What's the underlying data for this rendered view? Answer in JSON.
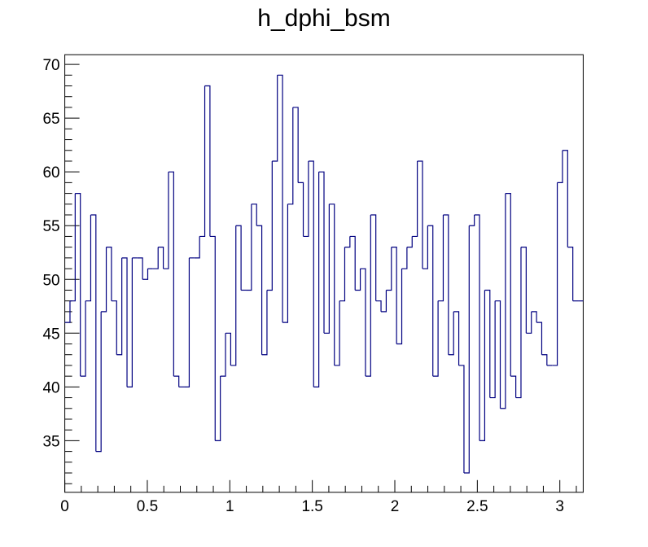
{
  "chart_data": {
    "type": "histogram",
    "title": "h_dphi_bsm",
    "xlabel": "",
    "ylabel": "",
    "xlim": [
      0,
      3.1416
    ],
    "ylim": [
      30.2,
      70.9
    ],
    "n_bins": 100,
    "x_tick_labels": [
      "0",
      "0.5",
      "1",
      "1.5",
      "2",
      "2.5",
      "3"
    ],
    "y_tick_labels": [
      "35",
      "40",
      "45",
      "50",
      "55",
      "60",
      "65",
      "70"
    ],
    "line_color": "#000080",
    "grid": false,
    "legend": "none",
    "series": [
      {
        "values": [
          46,
          48,
          58,
          41,
          48,
          56,
          34,
          47,
          53,
          48,
          43,
          52,
          40,
          52,
          52,
          50,
          51,
          51,
          53,
          51,
          60,
          41,
          40,
          40,
          52,
          52,
          54,
          68,
          54,
          35,
          41,
          45,
          42,
          55,
          49,
          49,
          57,
          55,
          43,
          49,
          61,
          69,
          46,
          57,
          66,
          59,
          54,
          61,
          40,
          60,
          45,
          57,
          42,
          48,
          53,
          54,
          49,
          51,
          41,
          56,
          48,
          47,
          49,
          53,
          44,
          51,
          53,
          54,
          61,
          51,
          55,
          41,
          48,
          56,
          43,
          47,
          42,
          32,
          55,
          56,
          35,
          49,
          39,
          48,
          38,
          58,
          41,
          39,
          53,
          45,
          47,
          46,
          43,
          42,
          42,
          59,
          62,
          53,
          48,
          48
        ]
      }
    ]
  }
}
